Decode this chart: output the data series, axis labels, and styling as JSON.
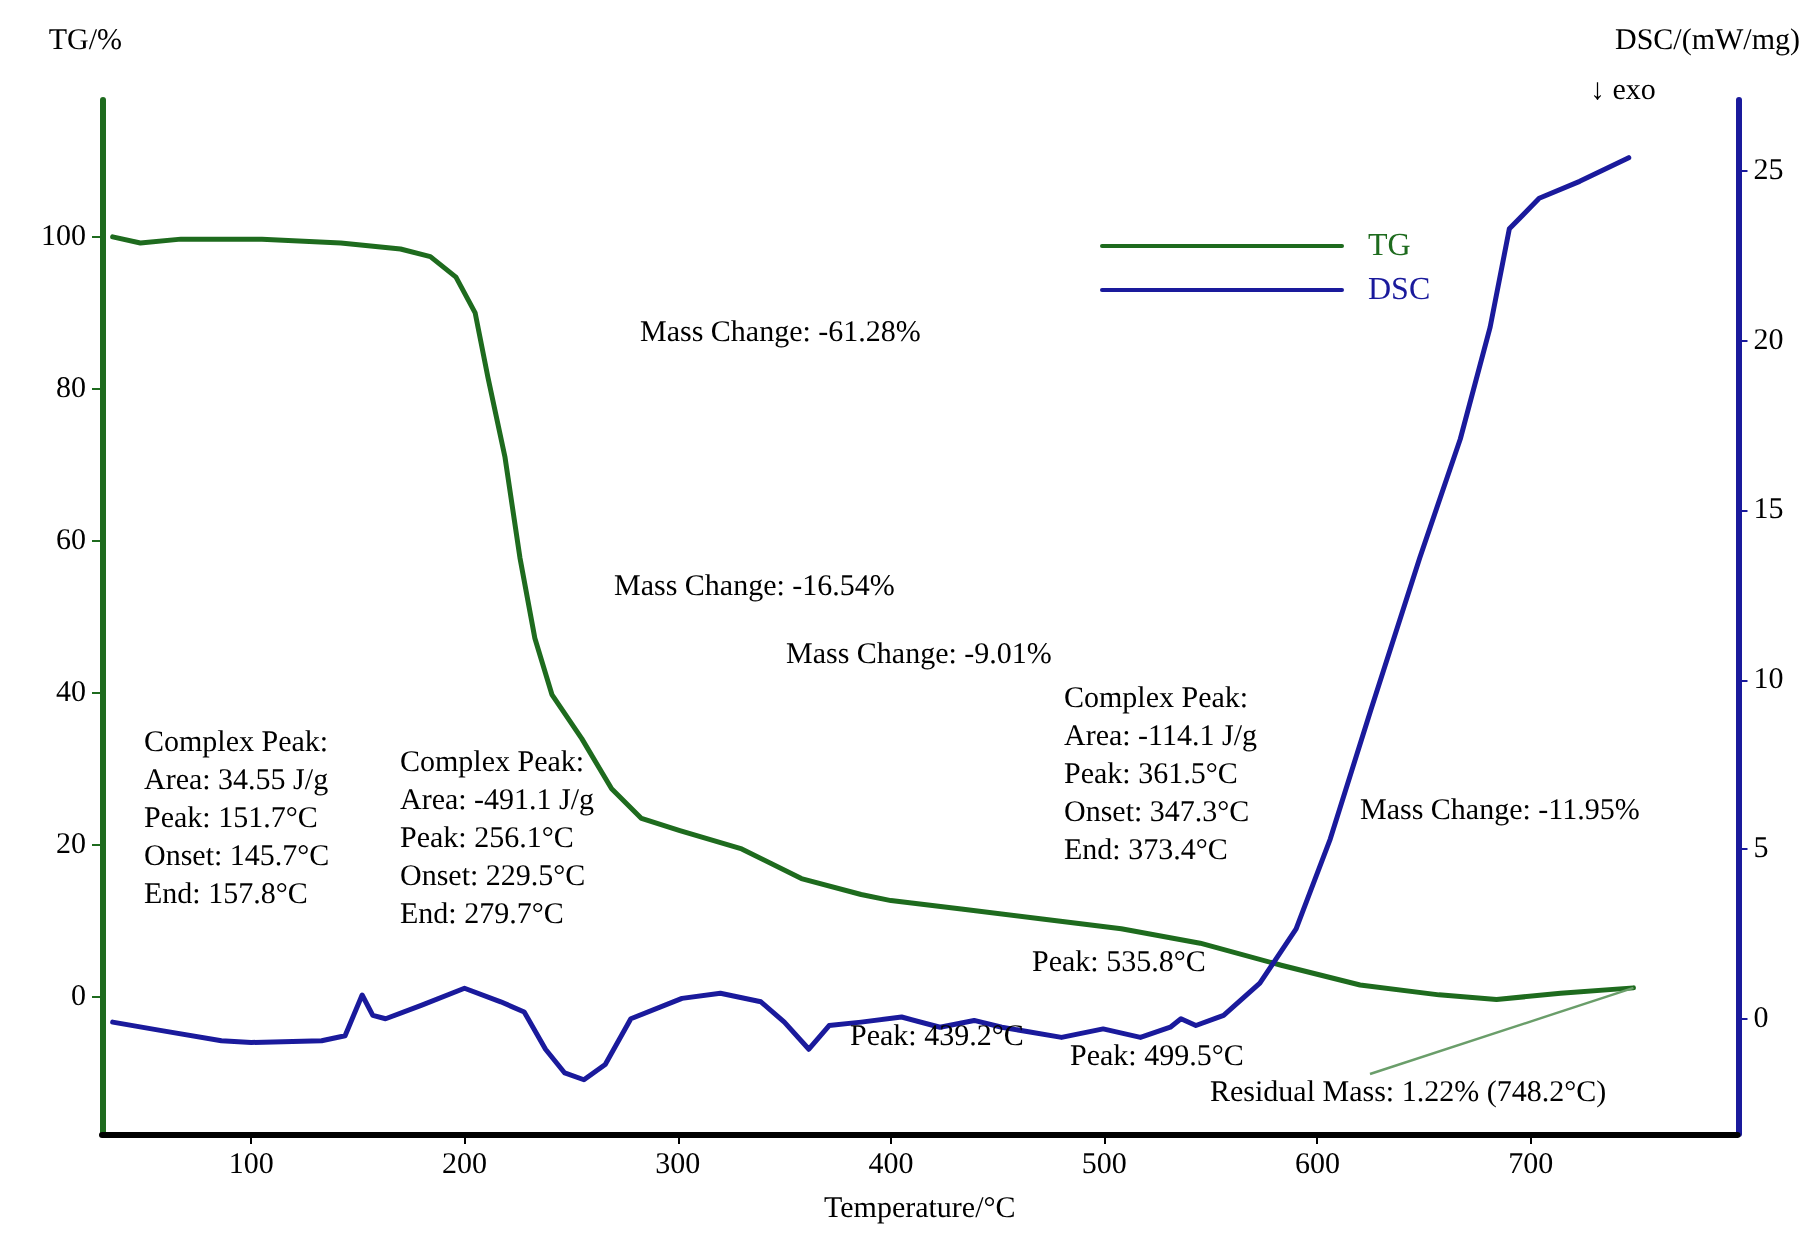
{
  "chart_data": {
    "type": "line",
    "xlabel": "Temperature/°C",
    "ylabel": "TG/%",
    "y2label": "DSC/(mW/mg)",
    "xlim": [
      30,
      797
    ],
    "xticks": [
      100,
      200,
      300,
      400,
      500,
      600,
      700
    ],
    "ylim": [
      -18,
      118
    ],
    "yticks": [
      0,
      20,
      40,
      60,
      80,
      100
    ],
    "y2lim": [
      -3.4,
      27.1
    ],
    "y2ticks": [
      0,
      5,
      10,
      15,
      20,
      25
    ],
    "legend": "top right",
    "grid": false,
    "marker": "none",
    "line_style": "solid",
    "series": [
      {
        "name": "TG",
        "color": "#1e6b1e",
        "x": [
          35,
          48,
          67,
          105,
          142,
          170,
          184,
          196,
          205,
          211,
          219,
          226,
          233,
          241,
          255,
          269,
          283,
          301,
          330,
          358,
          386,
          400,
          433,
          470,
          508,
          545,
          583,
          620,
          657,
          684,
          714,
          748.2
        ],
        "values": [
          100,
          99.2,
          99.7,
          99.7,
          99.2,
          98.4,
          97.4,
          94.7,
          90,
          81.5,
          71,
          57.8,
          47.2,
          39.8,
          34,
          27.4,
          23.5,
          21.9,
          19.5,
          15.6,
          13.5,
          12.7,
          11.6,
          10.3,
          9,
          7.1,
          4.2,
          1.6,
          0.3,
          -0.3,
          0.5,
          1.22
        ]
      },
      {
        "name": "DSC",
        "color": "#1a1a9c",
        "axis": "y2",
        "x": [
          35,
          58,
          86,
          100,
          133,
          144,
          152,
          157,
          163,
          180,
          200,
          217,
          228,
          238,
          247,
          256,
          266,
          278,
          302,
          320,
          339,
          350,
          361.5,
          371,
          386,
          405,
          423,
          439,
          452,
          480,
          499.5,
          517,
          531,
          536,
          543,
          556,
          573,
          590,
          606,
          625,
          648,
          667,
          681,
          690,
          704,
          723,
          746
        ],
        "values": [
          -0.1,
          -0.35,
          -0.65,
          -0.7,
          -0.65,
          -0.5,
          0.7,
          0.1,
          0,
          0.4,
          0.9,
          0.5,
          0.2,
          -0.9,
          -1.6,
          -1.8,
          -1.35,
          0,
          0.6,
          0.75,
          0.5,
          -0.1,
          -0.9,
          -0.2,
          -0.1,
          0.05,
          -0.25,
          -0.05,
          -0.25,
          -0.55,
          -0.3,
          -0.55,
          -0.25,
          0,
          -0.2,
          0.1,
          1.05,
          2.65,
          5.3,
          9.1,
          13.6,
          17.1,
          20.4,
          23.3,
          24.2,
          24.7,
          25.4
        ]
      }
    ],
    "annotations": [
      "↓ exo",
      "Mass Change: -61.28%",
      "Mass Change: -16.54%",
      "Mass Change: -9.01%",
      "Mass Change: -11.95%",
      {
        "text": "Residual Mass: 1.22% (748.2°C)",
        "x": 748.2,
        "y": 1.22
      },
      "Complex Peak:\nArea: 34.55 J/g\nPeak: 151.7°C\nOnset: 145.7°C\nEnd: 157.8°C",
      "Complex Peak:\nArea: -491.1 J/g\nPeak: 256.1°C\nOnset: 229.5°C\nEnd: 279.7°C",
      "Complex Peak:\nArea: -114.1 J/g\nPeak: 361.5°C\nOnset: 347.3°C\nEnd: 373.4°C",
      "Peak: 439.2°C",
      "Peak: 499.5°C",
      "Peak: 535.8°C"
    ]
  }
}
